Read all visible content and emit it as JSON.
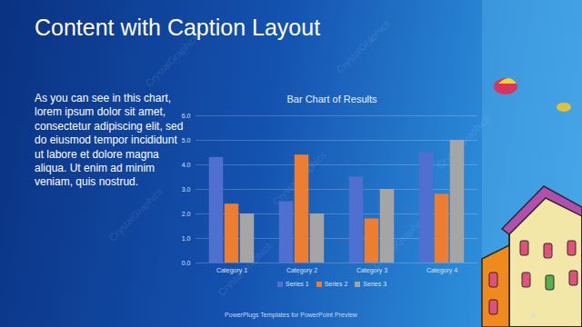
{
  "slide": {
    "title": "Content with Caption Layout",
    "caption": "As you can see in this chart, lorem ipsum dolor sit amet, consectetur adipiscing elit, sed do eiusmod tempor incididunt ut labore et dolore magna aliqua. Ut enim ad minim veniam, quis nostrud.",
    "footer": "PowerPlugs Templates for PowerPoint Preview",
    "page_number": 8,
    "watermark": "CrystalGraphics"
  },
  "chart_data": {
    "type": "bar",
    "title": "Bar Chart of Results",
    "categories": [
      "Category 1",
      "Category 2",
      "Category 3",
      "Category 4"
    ],
    "series": [
      {
        "name": "Series 1",
        "color": "#4f6fd1",
        "values": [
          4.3,
          2.5,
          3.5,
          4.5
        ]
      },
      {
        "name": "Series 2",
        "color": "#ed7d31",
        "values": [
          2.4,
          4.4,
          1.8,
          2.8
        ]
      },
      {
        "name": "Series 3",
        "color": "#a5a5a5",
        "values": [
          2.0,
          2.0,
          3.0,
          5.0
        ]
      }
    ],
    "ylim": [
      0,
      6
    ],
    "yticks": [
      0,
      1,
      2,
      3,
      4,
      5,
      6
    ],
    "grid": true,
    "legend": "bottom"
  }
}
